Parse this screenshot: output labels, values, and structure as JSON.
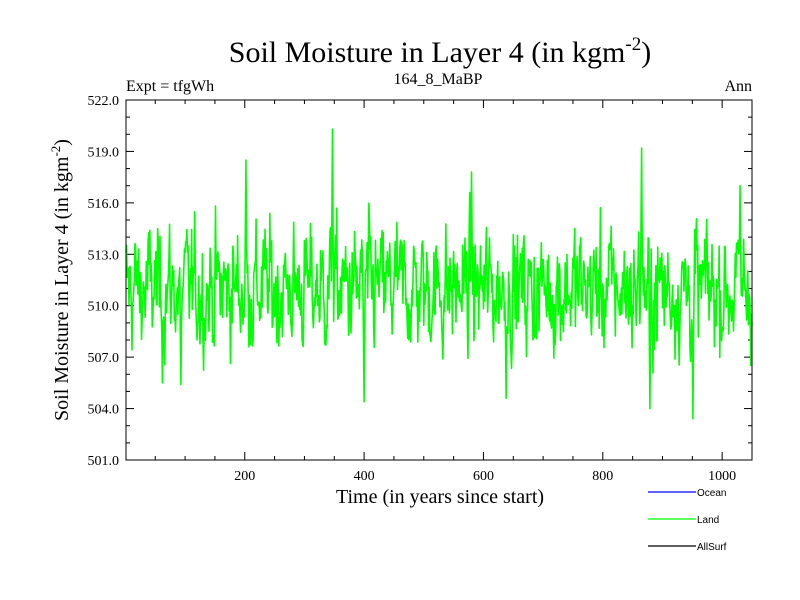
{
  "chart_data": {
    "type": "line",
    "title": "Soil Moisture in Layer 4 (in kgm",
    "title_sup": "-2",
    "title_close": ")",
    "subtitle_left": "Expt = tfgWh",
    "subtitle_center": "164_8_MaBP",
    "subtitle_right": "Ann",
    "xlabel": "Time (in years since start)",
    "ylabel": "Soil Moisture in Layer 4 (in kgm",
    "ylabel_sup": "-2",
    "ylabel_close": ")",
    "xlim": [
      1,
      1050
    ],
    "ylim": [
      501.0,
      522.0
    ],
    "xticks": [
      200,
      400,
      600,
      800,
      1000
    ],
    "yticks": [
      "501.0",
      "504.0",
      "507.0",
      "510.0",
      "513.0",
      "516.0",
      "519.0",
      "522.0"
    ],
    "series": [
      {
        "name": "Ocean",
        "color": "#0000ff",
        "values": []
      },
      {
        "name": "Land",
        "color": "#00ff00",
        "mean": 511.0,
        "std": 1.9,
        "n_points": 1050,
        "notable_points": [
          {
            "x": 347,
            "y": 520.3
          },
          {
            "x": 202,
            "y": 518.5
          },
          {
            "x": 865,
            "y": 519.2
          },
          {
            "x": 951,
            "y": 503.4
          },
          {
            "x": 400,
            "y": 504.4
          },
          {
            "x": 879,
            "y": 504.0
          },
          {
            "x": 638,
            "y": 504.6
          },
          {
            "x": 62,
            "y": 505.5
          },
          {
            "x": 93,
            "y": 505.4
          },
          {
            "x": 580,
            "y": 517.8
          },
          {
            "x": 1030,
            "y": 517.0
          }
        ]
      },
      {
        "name": "AllSurf",
        "color": "#000000",
        "values": []
      }
    ],
    "legend": {
      "placement": "bottom-right",
      "entries": [
        {
          "label": "Ocean",
          "color": "#0000ff"
        },
        {
          "label": "Land",
          "color": "#00ff00"
        },
        {
          "label": "AllSurf",
          "color": "#000000"
        }
      ]
    }
  }
}
